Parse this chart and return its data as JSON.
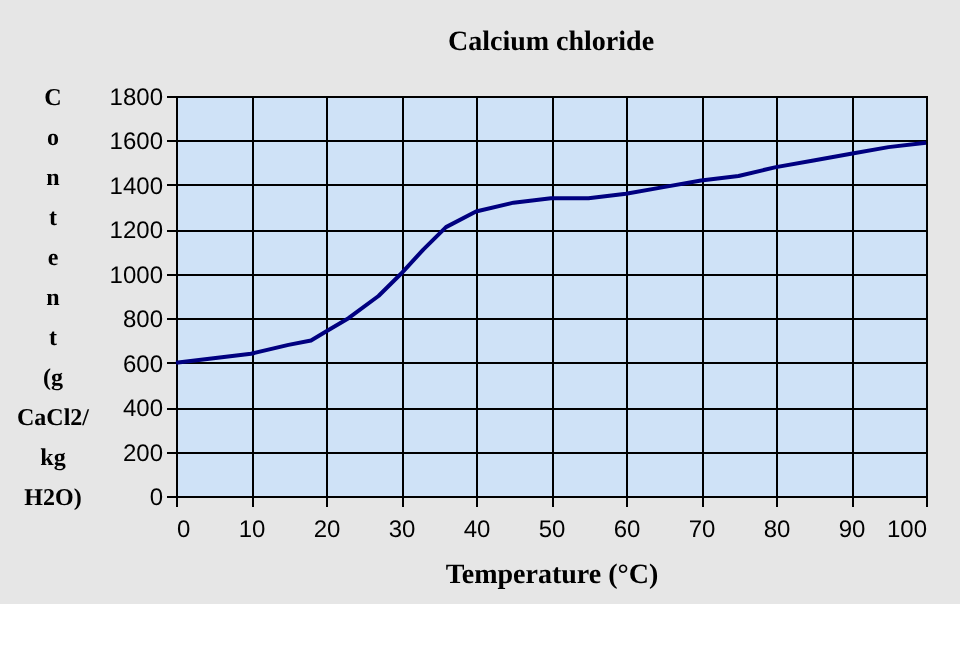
{
  "chart_data": {
    "type": "line",
    "title": "Calcium chloride",
    "xlabel": "Temperature (°C)",
    "ylabel": "Content (g CaCl2/ kg H2O)",
    "x": [
      0,
      5,
      10,
      15,
      18,
      20,
      23,
      27,
      30,
      33,
      36,
      40,
      45,
      50,
      55,
      60,
      65,
      70,
      75,
      80,
      85,
      90,
      95,
      100
    ],
    "series": [
      {
        "color": "#000080",
        "values": [
          600,
          620,
          640,
          680,
          700,
          740,
          800,
          900,
          1000,
          1110,
          1210,
          1280,
          1320,
          1340,
          1340,
          1360,
          1390,
          1420,
          1440,
          1480,
          1510,
          1540,
          1570,
          1590
        ]
      }
    ],
    "xlim": [
      0,
      100
    ],
    "xticks": [
      0,
      10,
      20,
      30,
      40,
      50,
      60,
      70,
      80,
      90,
      100
    ],
    "ylim": [
      0,
      1800
    ],
    "yticks": [
      0,
      200,
      400,
      600,
      800,
      1000,
      1200,
      1400,
      1600,
      1800
    ],
    "grid": true,
    "legend": false,
    "marker": "none",
    "line_style": "solid"
  }
}
